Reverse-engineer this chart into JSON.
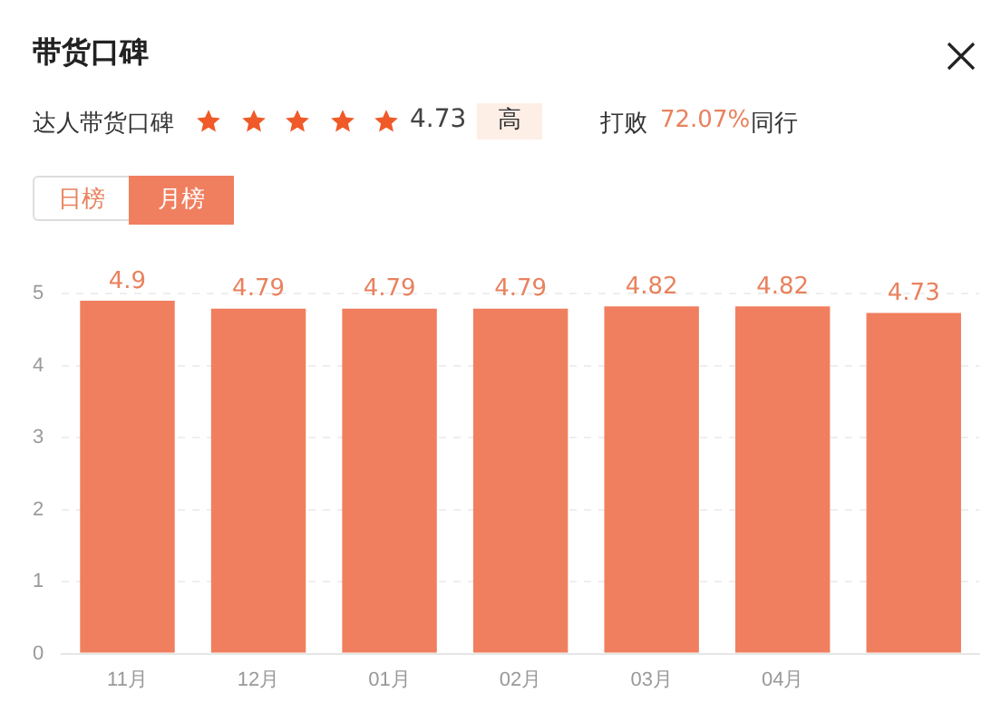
{
  "chart_data": {
    "type": "bar",
    "title": "带货口碑",
    "annotations": [
      "达人带货口碑",
      "4.73",
      "高",
      "打败",
      "72.07%",
      "同行",
      "日榜",
      "月榜"
    ],
    "categories": [
      "11月",
      "12月",
      "01月",
      "02月",
      "03月",
      "04月",
      null
    ],
    "values": [
      4.9,
      4.79,
      4.79,
      4.79,
      4.82,
      4.82,
      4.73
    ],
    "color": "#f07f5f",
    "ylim": [
      0,
      5
    ],
    "yticks": [
      0,
      1,
      2,
      3,
      4,
      5
    ],
    "grid": "y",
    "data_labels": true,
    "legend": false
  }
}
